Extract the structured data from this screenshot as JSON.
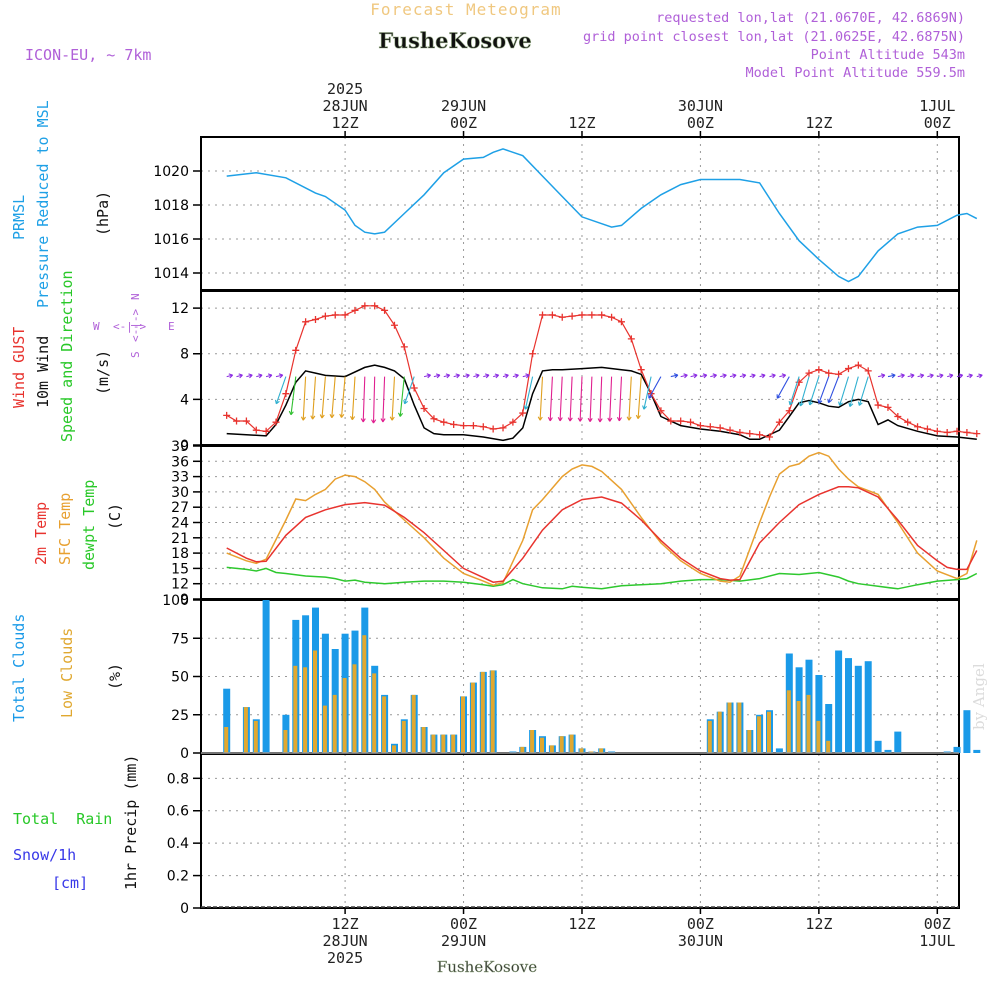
{
  "header": {
    "title": "Forecast Meteogram",
    "location": "FusheKosove",
    "model": "ICON-EU, ~ 7km",
    "requested": "requested lon,lat (21.0670E, 42.6869N)",
    "closest": "grid point closest lon,lat (21.0625E, 42.6875N)",
    "altitude": "Point Altitude 543m",
    "model_altitude": "Model Point Altitude 559.5m",
    "credit": "by Angel",
    "footer_location": "FusheKosove"
  },
  "time_axis": {
    "top": [
      {
        "hour": 12,
        "lines": [
          "2025",
          "28JUN",
          "12Z"
        ]
      },
      {
        "hour": 24,
        "lines": [
          "29JUN",
          "00Z"
        ]
      },
      {
        "hour": 36,
        "lines": [
          "12Z"
        ]
      },
      {
        "hour": 48,
        "lines": [
          "30JUN",
          "00Z"
        ]
      },
      {
        "hour": 60,
        "lines": [
          "12Z"
        ]
      },
      {
        "hour": 72,
        "lines": [
          "1JUL",
          "00Z"
        ]
      }
    ],
    "bottom": [
      {
        "hour": 12,
        "lines": [
          "12Z",
          "28JUN",
          "2025"
        ]
      },
      {
        "hour": 24,
        "lines": [
          "00Z",
          "29JUN"
        ]
      },
      {
        "hour": 36,
        "lines": [
          "12Z"
        ]
      },
      {
        "hour": 48,
        "lines": [
          "00Z",
          "30JUN"
        ]
      },
      {
        "hour": 60,
        "lines": [
          "12Z"
        ]
      },
      {
        "hour": 72,
        "lines": [
          "00Z",
          "1JUL"
        ]
      }
    ]
  },
  "panels": {
    "pressure": {
      "labels": [
        "PRMSL",
        "Pressure Reduced to MSL"
      ],
      "unit": "(hPa)",
      "ticks": [
        "1014",
        "1016",
        "1018",
        "1020"
      ]
    },
    "wind": {
      "labels": [
        "Wind GUST",
        "10m Wind",
        "Speed and Direction"
      ],
      "unit": "(m/s)",
      "ticks": [
        "0",
        "4",
        "8",
        "12"
      ],
      "compass": {
        "n": "N",
        "s": "S",
        "w": "W",
        "e": "E",
        "arrows": "<-|->"
      }
    },
    "temp": {
      "labels": [
        "2m Temp",
        "SFC Temp",
        "dewpt Temp"
      ],
      "unit": "(C)",
      "ticks": [
        "9",
        "12",
        "15",
        "18",
        "21",
        "24",
        "27",
        "30",
        "33",
        "36",
        "39"
      ]
    },
    "clouds": {
      "labels": [
        "Total Clouds",
        "Low Clouds"
      ],
      "unit": "(%)",
      "ticks": [
        "0",
        "25",
        "50",
        "75",
        "100"
      ]
    },
    "precip": {
      "labels": [
        "Total  Rain",
        "Snow/1h",
        "[cm]"
      ],
      "unit": "1hr Precip (mm)",
      "ticks": [
        "0",
        "0.2",
        "0.4",
        "0.6",
        "0.8"
      ]
    }
  },
  "colors": {
    "pressure": "#1ea0e6",
    "gust": "#e8332e",
    "wind": "#000000",
    "temp2m": "#e8332e",
    "sfc": "#e8a030",
    "dewpt": "#2ec82e",
    "total_clouds": "#1a9ae8",
    "low_clouds": "#e0a830",
    "label_purple": "#b060d8",
    "title_orange": "#f0c880",
    "rain_green": "#28c828",
    "snow_blue": "#3838e8"
  },
  "chart_data": [
    {
      "type": "line",
      "series": [
        {
          "name": "PRMSL",
          "x": [
            0,
            3,
            6,
            9,
            10,
            12,
            13,
            14,
            15,
            16,
            18,
            20,
            22,
            24,
            26,
            27,
            28,
            30,
            32,
            34,
            36,
            38,
            39,
            40,
            42,
            44,
            46,
            48,
            50,
            52,
            54,
            56,
            58,
            60,
            62,
            63,
            64,
            66,
            68,
            70,
            72,
            74,
            75,
            76
          ],
          "values": [
            1019.7,
            1019.9,
            1019.6,
            1018.7,
            1018.5,
            1017.7,
            1016.8,
            1016.4,
            1016.3,
            1016.4,
            1017.5,
            1018.6,
            1019.9,
            1020.7,
            1020.8,
            1021.1,
            1021.3,
            1020.9,
            1019.7,
            1018.5,
            1017.3,
            1016.9,
            1016.7,
            1016.8,
            1017.8,
            1018.6,
            1019.2,
            1019.5,
            1019.5,
            1019.5,
            1019.3,
            1017.5,
            1015.9,
            1014.8,
            1013.8,
            1013.5,
            1013.8,
            1015.3,
            1016.3,
            1016.7,
            1016.8,
            1017.4,
            1017.5,
            1017.2
          ]
        }
      ],
      "ylim": [
        1013,
        1022
      ]
    },
    {
      "type": "line",
      "series": [
        {
          "name": "Wind GUST",
          "x": [
            0,
            1,
            2,
            3,
            4,
            5,
            6,
            7,
            8,
            9,
            10,
            11,
            12,
            13,
            14,
            15,
            16,
            17,
            18,
            19,
            20,
            21,
            22,
            23,
            24,
            25,
            26,
            27,
            28,
            29,
            30,
            31,
            32,
            33,
            34,
            35,
            36,
            37,
            38,
            39,
            40,
            41,
            42,
            43,
            44,
            45,
            46,
            47,
            48,
            49,
            50,
            51,
            52,
            53,
            54,
            55,
            56,
            57,
            58,
            59,
            60,
            61,
            62,
            63,
            64,
            65,
            66,
            67,
            68,
            69,
            70,
            71,
            72,
            73,
            74,
            75,
            76
          ],
          "values": [
            2.6,
            2.1,
            2.1,
            1.3,
            1.2,
            2.0,
            4.5,
            8.3,
            10.8,
            11.0,
            11.3,
            11.4,
            11.4,
            11.8,
            12.2,
            12.2,
            11.8,
            10.5,
            8.6,
            5.0,
            3.2,
            2.3,
            2.0,
            1.8,
            1.7,
            1.7,
            1.6,
            1.4,
            1.5,
            2.0,
            2.8,
            8.0,
            11.4,
            11.4,
            11.2,
            11.3,
            11.4,
            11.4,
            11.4,
            11.2,
            10.8,
            9.3,
            6.6,
            4.5,
            3.0,
            2.1,
            2.1,
            2.0,
            1.7,
            1.6,
            1.5,
            1.3,
            1.1,
            1.0,
            0.9,
            0.7,
            2.0,
            3.0,
            5.5,
            6.3,
            6.6,
            6.3,
            6.2,
            6.7,
            7.0,
            6.5,
            3.5,
            3.3,
            2.5,
            2.0,
            1.6,
            1.4,
            1.2,
            1.1,
            1.2,
            1.1,
            1.0
          ]
        },
        {
          "name": "10m Wind",
          "x": [
            0,
            2,
            4,
            5,
            6,
            7,
            8,
            9,
            10,
            12,
            14,
            15,
            16,
            17,
            18,
            19,
            20,
            21,
            22,
            24,
            26,
            28,
            29,
            30,
            31,
            32,
            33,
            34,
            36,
            38,
            40,
            41,
            42,
            43,
            44,
            46,
            48,
            50,
            52,
            53,
            54,
            56,
            57,
            58,
            59,
            60,
            61,
            62,
            63,
            64,
            65,
            66,
            67,
            68,
            70,
            72,
            74,
            76
          ],
          "values": [
            1.0,
            0.9,
            0.8,
            1.8,
            3.5,
            5.5,
            6.5,
            6.3,
            6.1,
            6.0,
            6.8,
            7.0,
            6.8,
            6.5,
            5.8,
            3.5,
            1.5,
            1.0,
            0.9,
            0.9,
            0.7,
            0.4,
            0.6,
            1.5,
            4.5,
            6.5,
            6.6,
            6.6,
            6.7,
            6.8,
            6.6,
            6.5,
            6.2,
            4.5,
            2.5,
            1.7,
            1.4,
            1.2,
            0.9,
            0.5,
            0.5,
            1.3,
            2.5,
            3.7,
            3.9,
            3.7,
            3.4,
            3.3,
            3.8,
            4.0,
            3.8,
            1.8,
            2.2,
            1.7,
            1.2,
            0.8,
            0.7,
            0.5
          ]
        }
      ],
      "ylim": [
        0,
        13.5
      ]
    },
    {
      "type": "line",
      "series": [
        {
          "name": "2m Temp",
          "x": [
            0,
            2,
            3,
            4,
            6,
            8,
            10,
            12,
            14,
            16,
            18,
            20,
            22,
            24,
            26,
            27,
            28,
            30,
            32,
            34,
            36,
            38,
            40,
            42,
            44,
            46,
            48,
            50,
            51,
            52,
            54,
            56,
            58,
            60,
            62,
            63,
            64,
            66,
            68,
            70,
            72,
            73,
            74,
            75,
            76
          ],
          "values": [
            19.0,
            17.0,
            16.3,
            16.4,
            21.5,
            25.0,
            26.5,
            27.5,
            27.9,
            27.4,
            25.0,
            22.0,
            18.5,
            15.0,
            13.2,
            12.3,
            12.5,
            17.0,
            22.5,
            26.5,
            28.5,
            29.0,
            27.8,
            24.5,
            20.5,
            17.0,
            14.5,
            13.0,
            12.7,
            12.8,
            20.0,
            24.0,
            27.5,
            29.5,
            31.0,
            31.0,
            30.8,
            29.0,
            24.5,
            19.5,
            16.5,
            15.2,
            14.8,
            14.8,
            18.5
          ]
        },
        {
          "name": "SFC Temp",
          "x": [
            0,
            2,
            3,
            4,
            6,
            7,
            8,
            9,
            10,
            11,
            12,
            13,
            14,
            15,
            16,
            18,
            20,
            22,
            24,
            26,
            27,
            28,
            30,
            31,
            32,
            34,
            35,
            36,
            37,
            38,
            40,
            42,
            44,
            46,
            48,
            50,
            51,
            52,
            54,
            55,
            56,
            57,
            58,
            59,
            60,
            61,
            62,
            63,
            64,
            66,
            68,
            70,
            72,
            74,
            75,
            76
          ],
          "values": [
            18.0,
            16.5,
            16.0,
            16.8,
            24.5,
            28.6,
            28.3,
            29.5,
            30.5,
            32.5,
            33.3,
            33.0,
            32.0,
            30.5,
            28.0,
            24.5,
            21.0,
            17.0,
            14.0,
            12.5,
            11.7,
            12.2,
            20.5,
            26.5,
            28.5,
            33.0,
            34.5,
            35.3,
            35.0,
            34.0,
            30.5,
            25.0,
            20.0,
            16.5,
            14.0,
            12.5,
            12.3,
            13.5,
            24.0,
            29.0,
            33.5,
            35.0,
            35.5,
            37.0,
            37.7,
            37.0,
            34.5,
            32.5,
            31.0,
            29.5,
            24.0,
            18.0,
            14.5,
            13.0,
            14.0,
            20.5
          ]
        },
        {
          "name": "dewpt Temp",
          "x": [
            0,
            2,
            3,
            4,
            5,
            6,
            8,
            10,
            11,
            12,
            13,
            14,
            16,
            18,
            20,
            22,
            24,
            26,
            27,
            28,
            29,
            30,
            32,
            34,
            35,
            36,
            38,
            40,
            42,
            44,
            46,
            48,
            50,
            52,
            54,
            56,
            58,
            60,
            62,
            63,
            64,
            66,
            68,
            70,
            72,
            74,
            75,
            76
          ],
          "values": [
            15.2,
            14.8,
            14.5,
            15.0,
            14.2,
            14.0,
            13.5,
            13.3,
            13.0,
            12.5,
            12.7,
            12.3,
            12.0,
            12.3,
            12.5,
            12.5,
            12.3,
            11.8,
            11.5,
            11.8,
            12.8,
            12.0,
            11.2,
            11.0,
            11.5,
            11.3,
            11.0,
            11.6,
            11.8,
            12.0,
            12.5,
            12.8,
            12.8,
            12.5,
            13.0,
            14.0,
            13.8,
            14.2,
            13.3,
            12.5,
            12.0,
            11.5,
            11.0,
            11.8,
            12.5,
            12.8,
            13.0,
            14.0
          ]
        }
      ],
      "ylim": [
        9,
        39
      ]
    },
    {
      "type": "bar",
      "x": [
        0,
        1,
        2,
        3,
        4,
        5,
        6,
        7,
        8,
        9,
        10,
        11,
        12,
        13,
        14,
        15,
        16,
        17,
        18,
        19,
        20,
        21,
        22,
        23,
        24,
        25,
        26,
        27,
        28,
        29,
        30,
        31,
        32,
        33,
        34,
        35,
        36,
        37,
        38,
        39,
        40,
        41,
        42,
        43,
        44,
        45,
        46,
        47,
        48,
        49,
        50,
        51,
        52,
        53,
        54,
        55,
        56,
        57,
        58,
        59,
        60,
        61,
        62,
        63,
        64,
        65,
        66,
        67,
        68,
        69,
        70,
        71,
        72,
        73,
        74,
        75,
        76
      ],
      "series": [
        {
          "name": "Total Clouds",
          "values": [
            42,
            0,
            30,
            22,
            100,
            0,
            25,
            87,
            90,
            95,
            78,
            68,
            78,
            80,
            95,
            57,
            38,
            6,
            22,
            38,
            17,
            12,
            12,
            12,
            37,
            46,
            53,
            54,
            0,
            1,
            4,
            15,
            11,
            5,
            11,
            12,
            3,
            1,
            3,
            1,
            0,
            0,
            0,
            0,
            0,
            0,
            0,
            0,
            0,
            22,
            27,
            33,
            33,
            15,
            25,
            28,
            3,
            65,
            56,
            61,
            51,
            32,
            67,
            62,
            57,
            60,
            8,
            2,
            14,
            0,
            0,
            0,
            0,
            1,
            4,
            28,
            2
          ]
        },
        {
          "name": "Low Clouds",
          "values": [
            17,
            0,
            30,
            21,
            0,
            0,
            15,
            57,
            56,
            67,
            31,
            38,
            49,
            58,
            77,
            52,
            37,
            5,
            21,
            38,
            17,
            12,
            12,
            12,
            37,
            46,
            53,
            54,
            0,
            0,
            4,
            15,
            10,
            5,
            11,
            12,
            3,
            1,
            3,
            0,
            0,
            0,
            0,
            0,
            0,
            0,
            0,
            0,
            0,
            21,
            27,
            33,
            33,
            15,
            24,
            27,
            0,
            41,
            34,
            38,
            21,
            8,
            0,
            0,
            0,
            0,
            0,
            0,
            0,
            0,
            0,
            0,
            0,
            0,
            0,
            0,
            0
          ]
        }
      ],
      "ylim": [
        0,
        100
      ]
    },
    {
      "type": "bar",
      "series": [
        {
          "name": "1hr Precip",
          "values": []
        }
      ],
      "ylim": [
        0,
        0.95
      ]
    }
  ]
}
